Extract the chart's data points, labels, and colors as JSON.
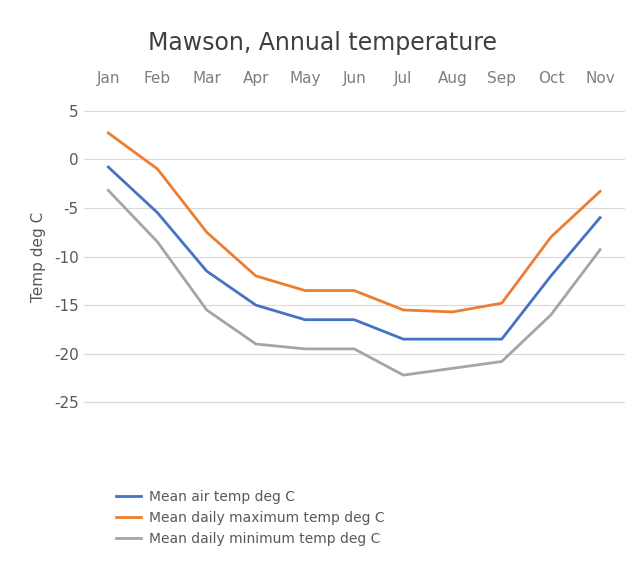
{
  "title": "Mawson, Annual temperature",
  "months": [
    "Jan",
    "Feb",
    "Mar",
    "Apr",
    "May",
    "Jun",
    "Jul",
    "Aug",
    "Sep",
    "Oct",
    "Nov"
  ],
  "mean_air_temp": [
    -0.8,
    -5.5,
    -11.5,
    -15.0,
    -16.5,
    -16.5,
    -18.5,
    -18.5,
    -18.5,
    -12.0,
    -6.0
  ],
  "mean_daily_max": [
    2.7,
    -1.0,
    -7.5,
    -12.0,
    -13.5,
    -13.5,
    -15.5,
    -15.7,
    -14.8,
    -8.0,
    -3.3
  ],
  "mean_daily_min": [
    -3.2,
    -8.5,
    -15.5,
    -19.0,
    -19.5,
    -19.5,
    -22.2,
    -21.5,
    -20.8,
    -16.0,
    -9.3
  ],
  "ylabel": "Temp deg C",
  "ylim": [
    -27,
    7
  ],
  "yticks": [
    -25,
    -20,
    -15,
    -10,
    -5,
    0,
    5
  ],
  "color_mean_air": "#4472C4",
  "color_mean_max": "#ED7D31",
  "color_mean_min": "#A5A5A5",
  "legend_labels": [
    "Mean air temp deg C",
    "Mean daily maximum temp deg C",
    "Mean daily minimum temp deg C"
  ],
  "title_color": "#404040",
  "axis_label_color": "#595959",
  "tick_label_color": "#595959",
  "month_label_color": "#7F7F7F",
  "background_color": "#FFFFFF",
  "grid_color": "#D9D9D9",
  "title_fontsize": 17,
  "tick_fontsize": 11,
  "ylabel_fontsize": 11,
  "legend_fontsize": 10
}
